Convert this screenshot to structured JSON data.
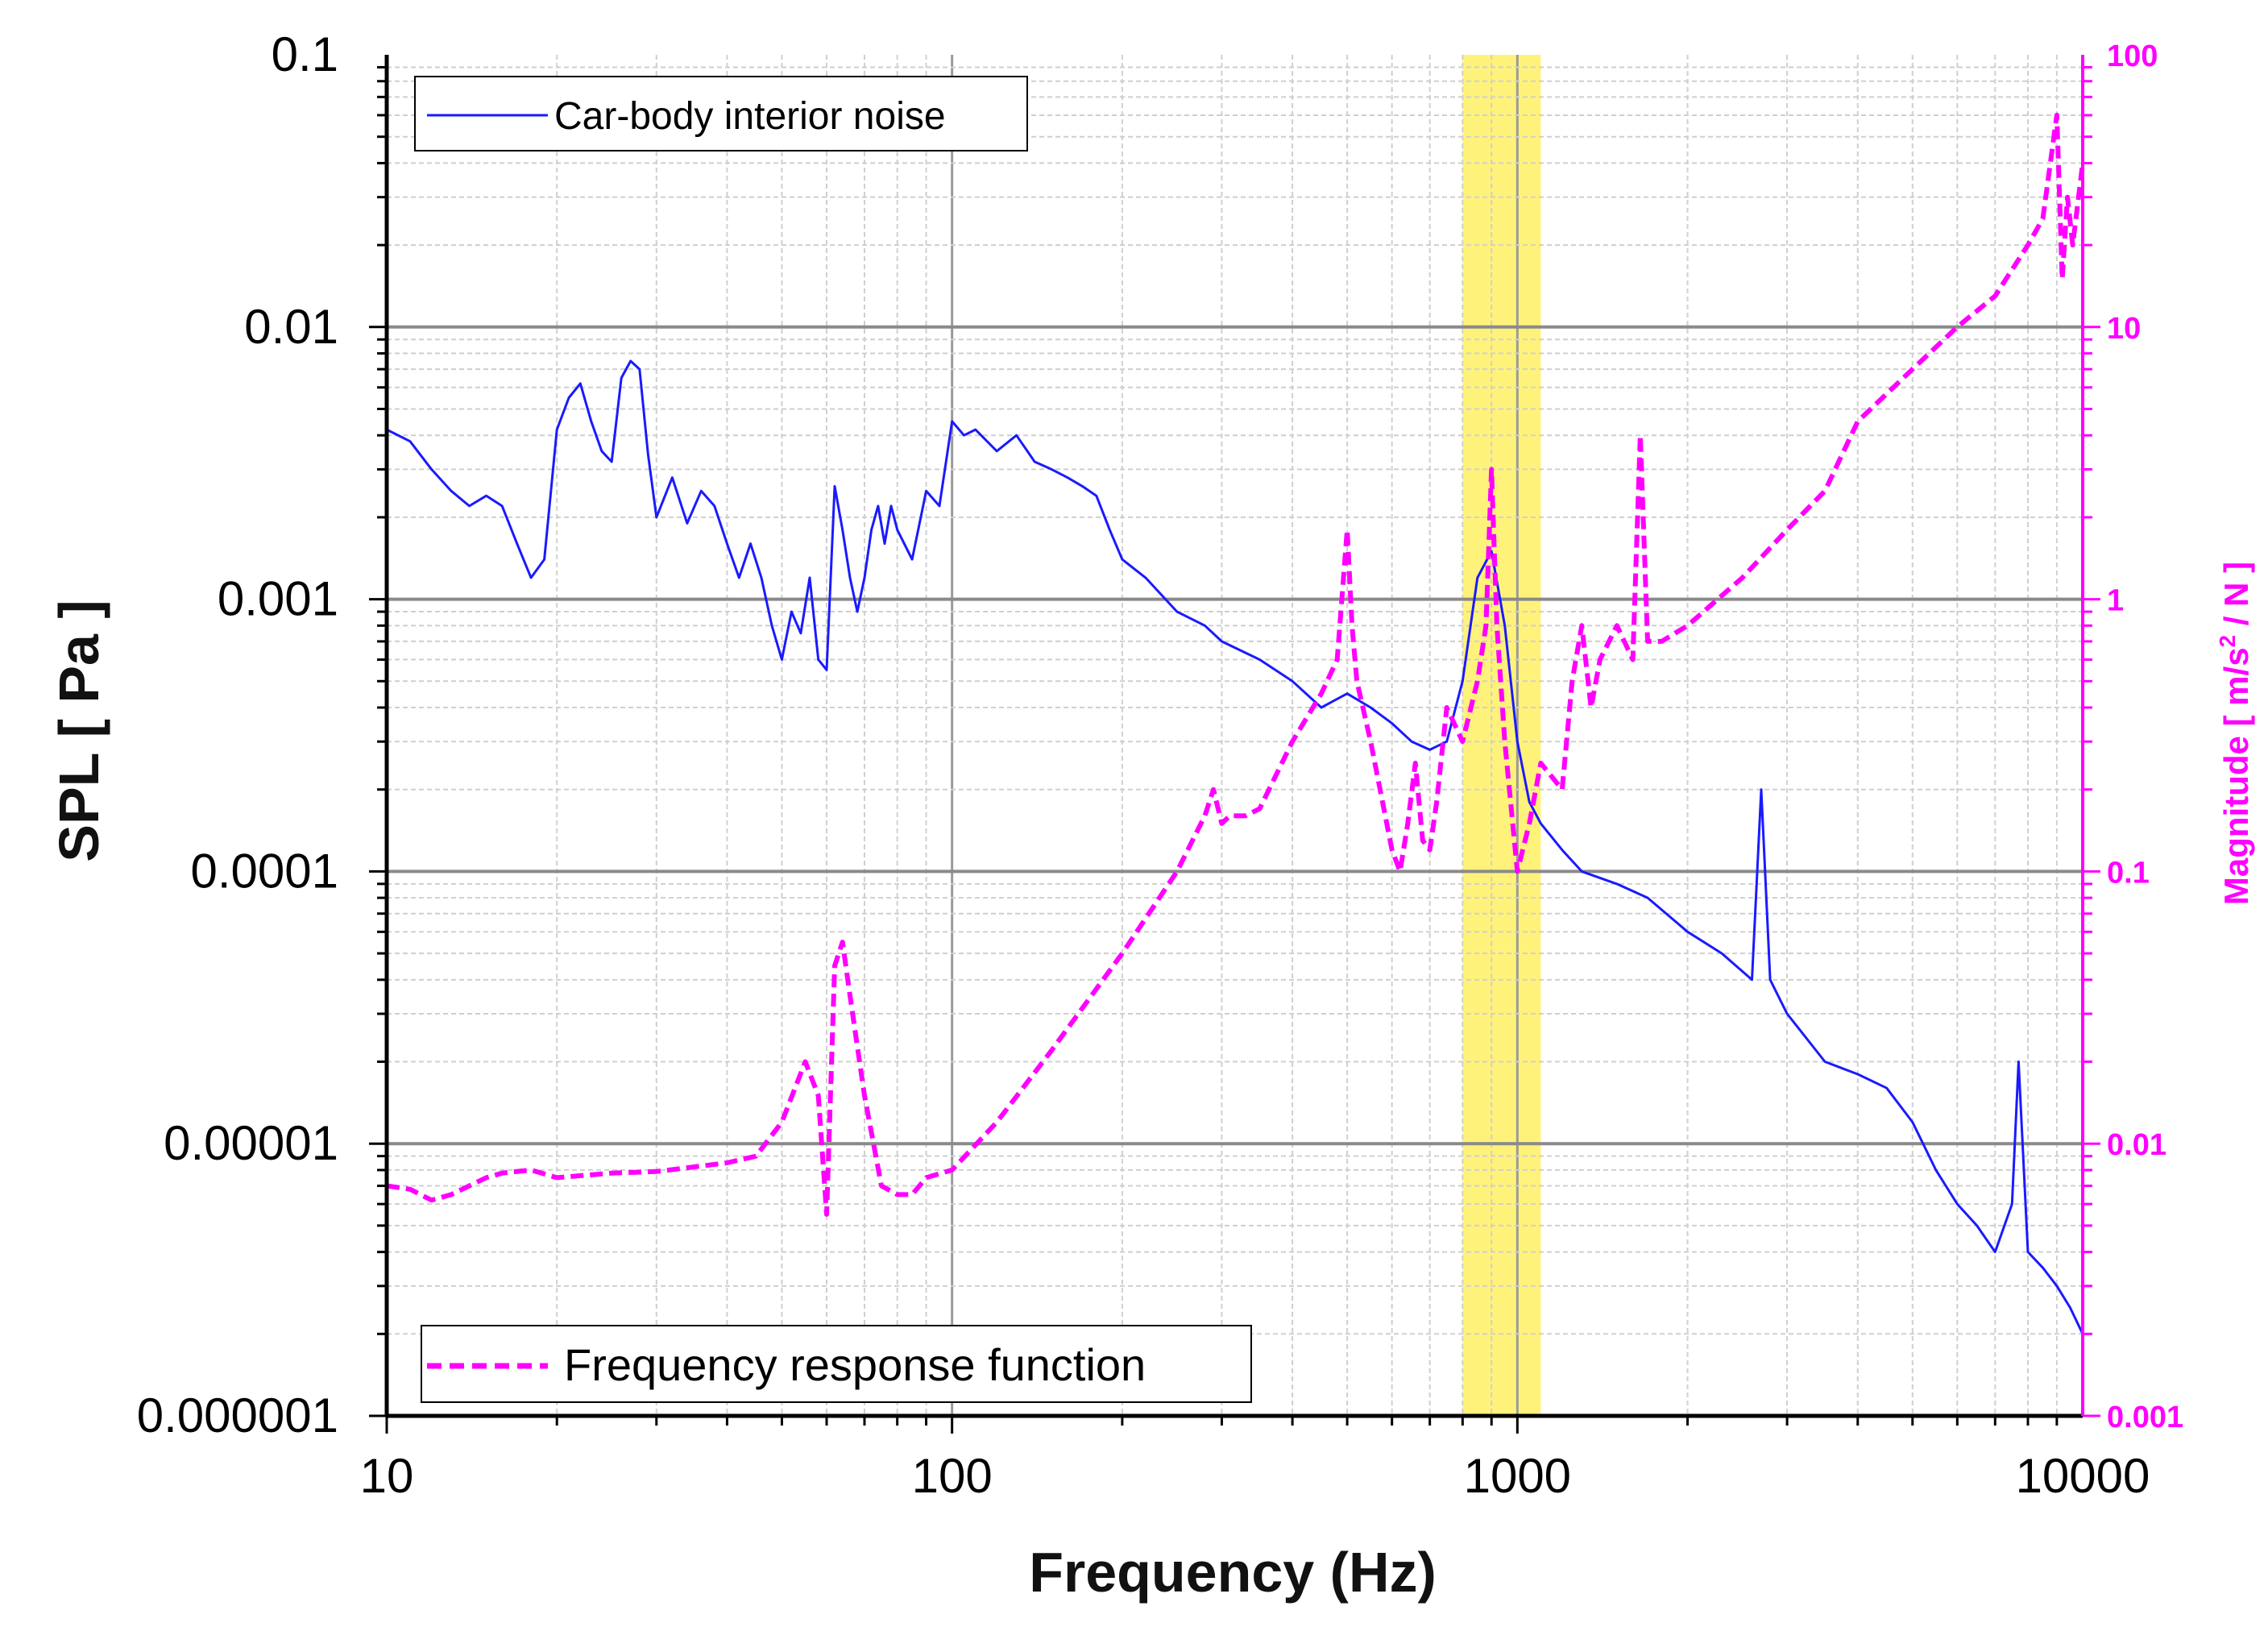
{
  "chart_data": {
    "type": "line",
    "title": "",
    "xlabel": "Frequency (Hz)",
    "ylabel": "SPL [ Pa ]",
    "y2label_parts": [
      "Magnitude [ m/s",
      "2",
      " / N ]"
    ],
    "x_scale": "log",
    "xlim": [
      10,
      10000
    ],
    "ylim": [
      1e-06,
      0.1
    ],
    "y2lim": [
      0.001,
      100
    ],
    "x_ticks": [
      {
        "value": 10,
        "label": "10"
      },
      {
        "value": 100,
        "label": "100"
      },
      {
        "value": 1000,
        "label": "1000"
      },
      {
        "value": 10000,
        "label": "10000"
      }
    ],
    "y_ticks": [
      {
        "value": 0.1,
        "label": "0.1"
      },
      {
        "value": 0.01,
        "label": "0.01"
      },
      {
        "value": 0.001,
        "label": "0.001"
      },
      {
        "value": 0.0001,
        "label": "0.0001"
      },
      {
        "value": 1e-05,
        "label": "0.00001"
      },
      {
        "value": 1e-06,
        "label": "0.000001"
      }
    ],
    "y2_ticks": [
      {
        "value": 100,
        "label": "100"
      },
      {
        "value": 10,
        "label": "10"
      },
      {
        "value": 1,
        "label": "1"
      },
      {
        "value": 0.1,
        "label": "0.1"
      },
      {
        "value": 0.01,
        "label": "0.01"
      },
      {
        "value": 0.001,
        "label": "0.001"
      }
    ],
    "highlight_band": {
      "x_range": [
        800,
        1100
      ],
      "color": "#fff27a"
    },
    "grid": true,
    "series": [
      {
        "name": "Car-body interior noise",
        "axis": "left",
        "color": "#1a1aff",
        "style": "solid",
        "legend_position": "top-left",
        "x": [
          10,
          11,
          12,
          13,
          14,
          15,
          16,
          17,
          18,
          19,
          20,
          21,
          22,
          23,
          24,
          25,
          26,
          27,
          28,
          29,
          30,
          32,
          34,
          36,
          38,
          40,
          42,
          44,
          46,
          48,
          50,
          52,
          54,
          56,
          58,
          60,
          62,
          64,
          66,
          68,
          70,
          72,
          74,
          76,
          78,
          80,
          85,
          90,
          95,
          100,
          105,
          110,
          120,
          130,
          140,
          150,
          160,
          170,
          180,
          190,
          200,
          220,
          250,
          280,
          300,
          350,
          400,
          450,
          500,
          550,
          600,
          650,
          700,
          750,
          800,
          850,
          900,
          950,
          1000,
          1050,
          1100,
          1200,
          1300,
          1500,
          1700,
          2000,
          2300,
          2600,
          2700,
          2800,
          3000,
          3500,
          4000,
          4500,
          5000,
          5500,
          6000,
          6500,
          7000,
          7500,
          7700,
          8000,
          8500,
          9000,
          9500,
          10000
        ],
        "y": [
          0.0042,
          0.0038,
          0.003,
          0.0025,
          0.0022,
          0.0024,
          0.0022,
          0.0016,
          0.0012,
          0.0014,
          0.0042,
          0.0055,
          0.0062,
          0.0045,
          0.0035,
          0.0032,
          0.0065,
          0.0075,
          0.007,
          0.0034,
          0.002,
          0.0028,
          0.0019,
          0.0025,
          0.0022,
          0.0016,
          0.0012,
          0.0016,
          0.0012,
          0.0008,
          0.0006,
          0.0009,
          0.00075,
          0.0012,
          0.0006,
          0.00055,
          0.0026,
          0.0018,
          0.0012,
          0.0009,
          0.0012,
          0.0018,
          0.0022,
          0.0016,
          0.0022,
          0.0018,
          0.0014,
          0.0025,
          0.0022,
          0.0045,
          0.004,
          0.0042,
          0.0035,
          0.004,
          0.0032,
          0.003,
          0.0028,
          0.0026,
          0.0024,
          0.0018,
          0.0014,
          0.0012,
          0.0009,
          0.0008,
          0.0007,
          0.0006,
          0.0005,
          0.0004,
          0.00045,
          0.0004,
          0.00035,
          0.0003,
          0.00028,
          0.0003,
          0.0005,
          0.0012,
          0.0015,
          0.0008,
          0.0003,
          0.00018,
          0.00015,
          0.00012,
          0.0001,
          9e-05,
          8e-05,
          6e-05,
          5e-05,
          4e-05,
          0.0002,
          4e-05,
          3e-05,
          2e-05,
          1.8e-05,
          1.6e-05,
          1.2e-05,
          8e-06,
          6e-06,
          5e-06,
          4e-06,
          6e-06,
          2e-05,
          4e-06,
          3.5e-06,
          3e-06,
          2.5e-06,
          2e-06
        ]
      },
      {
        "name": "Frequency response function",
        "axis": "right",
        "color": "#ff00ff",
        "style": "dashed",
        "legend_position": "bottom-left",
        "x": [
          10,
          11,
          12,
          13,
          14,
          15,
          16,
          18,
          20,
          25,
          30,
          40,
          45,
          50,
          55,
          58,
          60,
          62,
          64,
          66,
          70,
          75,
          80,
          85,
          90,
          100,
          120,
          150,
          200,
          250,
          280,
          290,
          300,
          310,
          330,
          350,
          400,
          450,
          480,
          500,
          510,
          520,
          550,
          600,
          620,
          640,
          660,
          680,
          700,
          720,
          750,
          800,
          850,
          880,
          900,
          920,
          950,
          1000,
          1050,
          1100,
          1200,
          1250,
          1300,
          1350,
          1400,
          1500,
          1600,
          1650,
          1700,
          1800,
          2000,
          2500,
          3000,
          3500,
          4000,
          5000,
          6000,
          7000,
          8000,
          8500,
          9000,
          9200,
          9400,
          9600,
          10000
        ],
        "y": [
          0.007,
          0.0068,
          0.0062,
          0.0065,
          0.007,
          0.0075,
          0.0078,
          0.008,
          0.0075,
          0.0078,
          0.0079,
          0.0085,
          0.009,
          0.012,
          0.02,
          0.015,
          0.0055,
          0.045,
          0.055,
          0.035,
          0.015,
          0.007,
          0.0065,
          0.0065,
          0.0075,
          0.008,
          0.012,
          0.022,
          0.05,
          0.1,
          0.16,
          0.2,
          0.15,
          0.16,
          0.16,
          0.17,
          0.3,
          0.45,
          0.6,
          1.8,
          0.8,
          0.5,
          0.3,
          0.12,
          0.1,
          0.15,
          0.25,
          0.13,
          0.12,
          0.18,
          0.4,
          0.3,
          0.5,
          0.8,
          3.0,
          0.8,
          0.3,
          0.1,
          0.15,
          0.25,
          0.2,
          0.5,
          0.8,
          0.4,
          0.6,
          0.8,
          0.6,
          4.0,
          0.7,
          0.7,
          0.8,
          1.2,
          1.8,
          2.5,
          4.5,
          7.0,
          10.0,
          13.0,
          20.0,
          25.0,
          60.0,
          15.0,
          30.0,
          20.0,
          40.0
        ]
      }
    ]
  }
}
